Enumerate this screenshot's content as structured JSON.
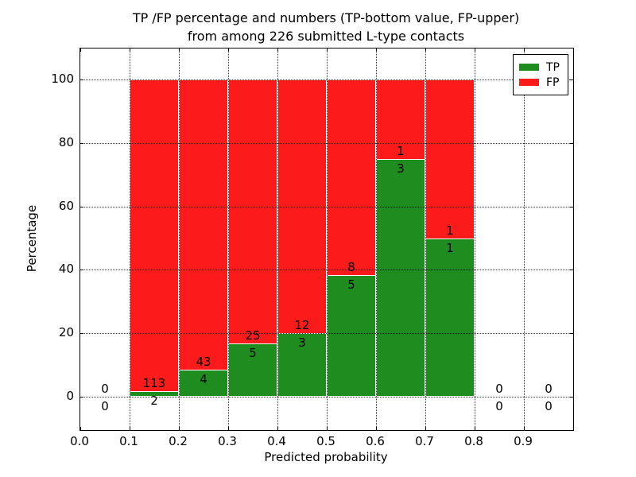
{
  "figure": {
    "title_line1": "TP /FP percentage and numbers (TP-bottom value, FP-upper)",
    "title_line2": "from among 226 submitted L-type contacts",
    "xlabel": "Predicted probability",
    "ylabel": "Percentage"
  },
  "legend": {
    "items": [
      {
        "label": "TP",
        "color": "#1e8c1e"
      },
      {
        "label": "FP",
        "color": "#fc1b1b"
      }
    ]
  },
  "chart_data": {
    "type": "bar",
    "stacked": true,
    "title": "TP /FP percentage and numbers (TP-bottom value, FP-upper) from among 226 submitted L-type contacts",
    "xlabel": "Predicted probability",
    "ylabel": "Percentage",
    "xlim": [
      0.0,
      1.0
    ],
    "ylim": [
      -10.5,
      110.3
    ],
    "grid": "dotted",
    "legend_position": "upper right",
    "x_tick_labels": [
      "0.0",
      "0.1",
      "0.2",
      "0.3",
      "0.4",
      "0.5",
      "0.6",
      "0.7",
      "0.8",
      "0.9"
    ],
    "y_tick_values": [
      0,
      20,
      40,
      60,
      80,
      100
    ],
    "series": [
      {
        "name": "TP",
        "color": "#1e8c1e"
      },
      {
        "name": "FP",
        "color": "#fc1b1b"
      }
    ],
    "total_contacts": 226,
    "bins": [
      {
        "x_start": 0.0,
        "x_end": 0.1,
        "tp_count": 0,
        "fp_count": 0,
        "tp_pct": 0,
        "fp_pct": 0,
        "has_bar": false
      },
      {
        "x_start": 0.1,
        "x_end": 0.2,
        "tp_count": 2,
        "fp_count": 113,
        "tp_pct": 1.739,
        "fp_pct": 98.261,
        "has_bar": true
      },
      {
        "x_start": 0.2,
        "x_end": 0.3,
        "tp_count": 4,
        "fp_count": 43,
        "tp_pct": 8.511,
        "fp_pct": 91.489,
        "has_bar": true
      },
      {
        "x_start": 0.3,
        "x_end": 0.4,
        "tp_count": 5,
        "fp_count": 25,
        "tp_pct": 16.667,
        "fp_pct": 83.333,
        "has_bar": true
      },
      {
        "x_start": 0.4,
        "x_end": 0.5,
        "tp_count": 3,
        "fp_count": 12,
        "tp_pct": 20.0,
        "fp_pct": 80.0,
        "has_bar": true
      },
      {
        "x_start": 0.5,
        "x_end": 0.6,
        "tp_count": 5,
        "fp_count": 8,
        "tp_pct": 38.462,
        "fp_pct": 61.538,
        "has_bar": true
      },
      {
        "x_start": 0.6,
        "x_end": 0.7,
        "tp_count": 3,
        "fp_count": 1,
        "tp_pct": 75.0,
        "fp_pct": 25.0,
        "has_bar": true
      },
      {
        "x_start": 0.7,
        "x_end": 0.8,
        "tp_count": 1,
        "fp_count": 1,
        "tp_pct": 50.0,
        "fp_pct": 50.0,
        "has_bar": true
      },
      {
        "x_start": 0.8,
        "x_end": 0.9,
        "tp_count": 0,
        "fp_count": 0,
        "tp_pct": 0,
        "fp_pct": 0,
        "has_bar": false
      },
      {
        "x_start": 0.9,
        "x_end": 1.0,
        "tp_count": 0,
        "fp_count": 0,
        "tp_pct": 0,
        "fp_pct": 0,
        "has_bar": false
      }
    ]
  },
  "colors": {
    "tp_green": "#1e8c1e",
    "fp_red": "#fc1b1b",
    "bar_edge": "#ffffff",
    "grid": "#000000",
    "background": "#ffffff",
    "text": "#000000"
  }
}
